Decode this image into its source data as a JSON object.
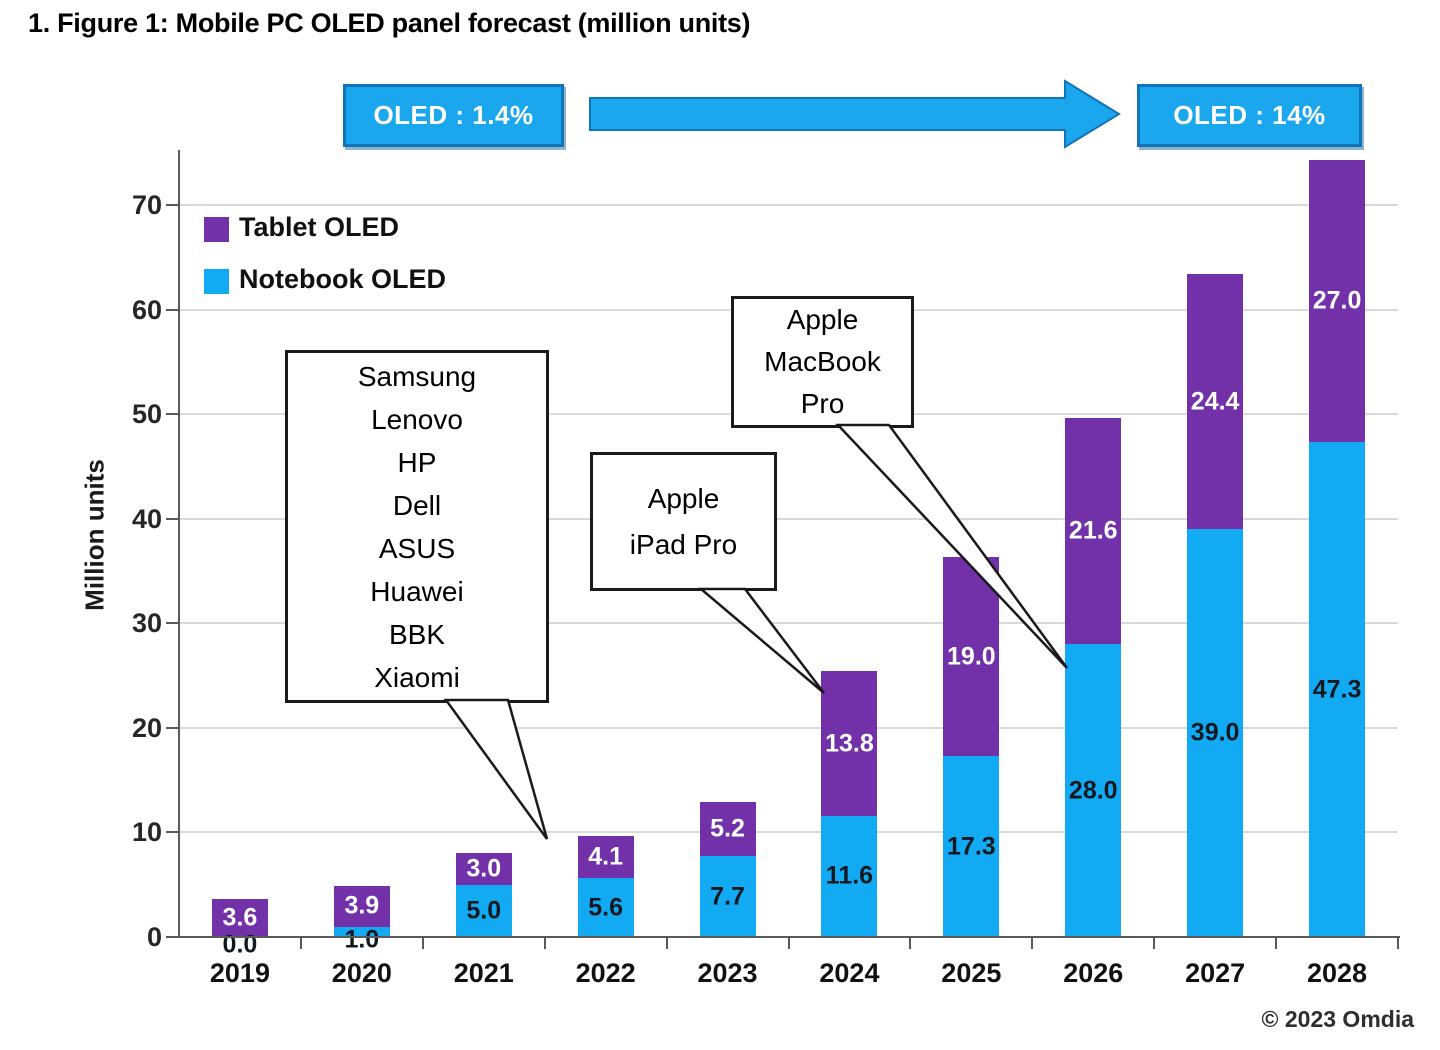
{
  "page": {
    "heading": "1. Figure 1: Mobile PC OLED panel forecast (million units)",
    "copyright": "© 2023 Omdia"
  },
  "legend": [
    {
      "label": "Tablet OLED",
      "color": "#7231A8"
    },
    {
      "label": "Notebook OLED",
      "color": "#12AAF3"
    }
  ],
  "chart_data": {
    "type": "bar",
    "stacked": true,
    "title": "Mobile PC OLED panel forecast (million units)",
    "ylabel": "Million units",
    "ylim": [
      0,
      75
    ],
    "yticks": [
      0,
      10,
      20,
      30,
      40,
      50,
      60,
      70
    ],
    "grid": true,
    "legend_position": "top-left",
    "categories": [
      "2019",
      "2020",
      "2021",
      "2022",
      "2023",
      "2024",
      "2025",
      "2026",
      "2027",
      "2028"
    ],
    "series": [
      {
        "name": "Notebook OLED",
        "color": "#12AAF3",
        "label_color": "#101820",
        "values": [
          0.0,
          1.0,
          5.0,
          5.6,
          7.7,
          11.6,
          17.3,
          28.0,
          39.0,
          47.3
        ]
      },
      {
        "name": "Tablet OLED",
        "color": "#7231A8",
        "label_color": "#FFFFFF",
        "values": [
          3.6,
          3.9,
          3.0,
          4.1,
          5.2,
          13.8,
          19.0,
          21.6,
          24.4,
          27.0
        ]
      }
    ],
    "annotations": {
      "share_start": "OLED : 1.4%",
      "share_end": "OLED : 14%",
      "oem_callout_lines": [
        "Samsung",
        "Lenovo",
        "HP",
        "Dell",
        "ASUS",
        "Huawei",
        "BBK",
        "Xiaomi"
      ],
      "ipad_callout_lines": [
        "Apple",
        "iPad Pro"
      ],
      "macbook_callout_lines": [
        "Apple",
        "MacBook",
        "Pro"
      ]
    }
  }
}
